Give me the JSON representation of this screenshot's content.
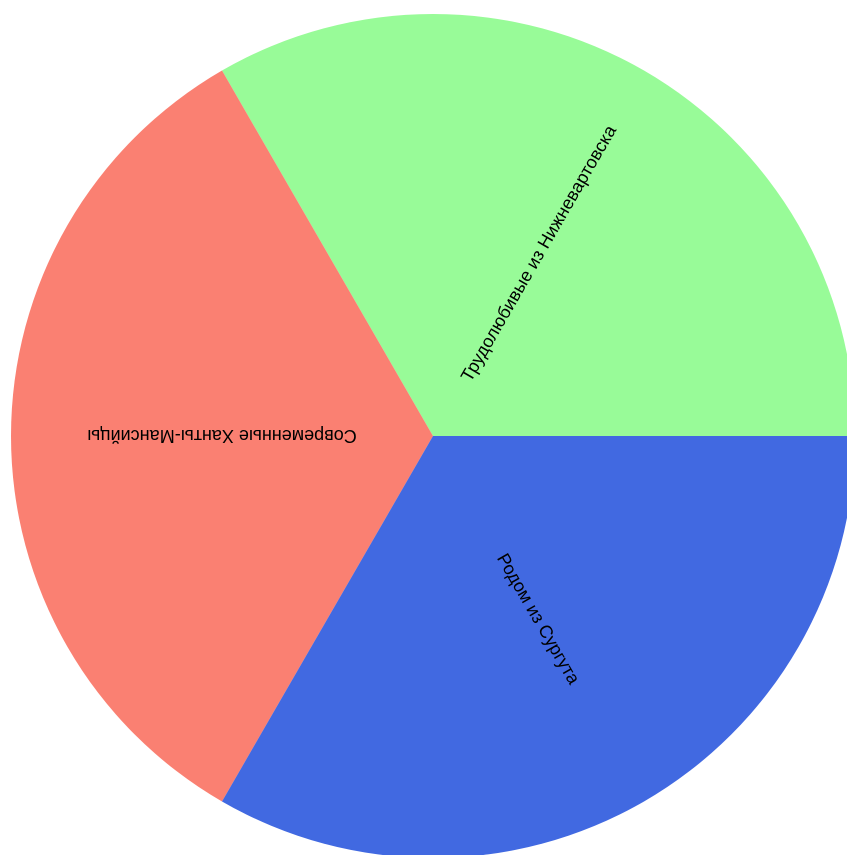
{
  "chart_data": {
    "type": "pie",
    "title": "",
    "slices": [
      {
        "label": "Трудолюбивые из Нижневартовска",
        "value": 1,
        "color": "#98FB98"
      },
      {
        "label": "Современные Ханты-Мансийцы",
        "value": 1,
        "color": "#FA8072"
      },
      {
        "label": "Родом из Сургута",
        "value": 1,
        "color": "#4169E1"
      }
    ],
    "start_angle_deg": 0,
    "direction": "counterclockwise"
  }
}
